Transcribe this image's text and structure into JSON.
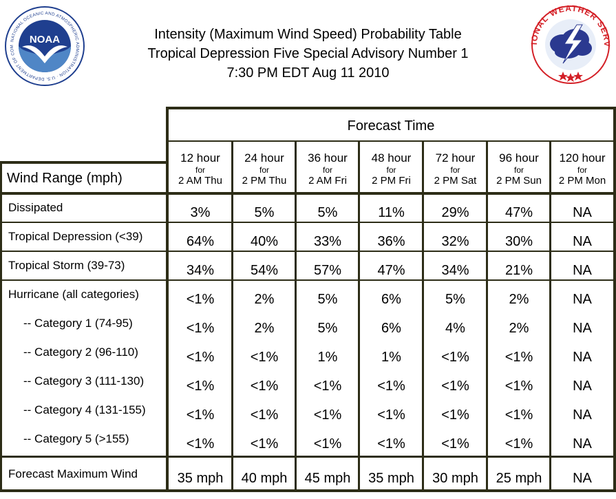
{
  "header": {
    "title_line1": "Intensity (Maximum Wind Speed) Probability Table",
    "title_line2": "Tropical Depression Five Special Advisory Number 1",
    "title_line3": "7:30 PM EDT Aug 11 2010"
  },
  "logos": {
    "noaa": {
      "text": "NOAA",
      "ring_text": "NATIONAL OCEANIC AND ATMOSPHERIC ADMINISTRATION · U.S. DEPARTMENT OF COMMERCE"
    },
    "nws": {
      "ring_text": "NATIONAL WEATHER SERVICE"
    }
  },
  "table": {
    "forecast_time_label": "Forecast Time",
    "row_header_label": "Wind Range (mph)",
    "columns": [
      {
        "hour": "12 hour",
        "for": "for",
        "time": "2 AM Thu"
      },
      {
        "hour": "24 hour",
        "for": "for",
        "time": "2 PM Thu"
      },
      {
        "hour": "36 hour",
        "for": "for",
        "time": "2 AM Fri"
      },
      {
        "hour": "48 hour",
        "for": "for",
        "time": "2 PM Fri"
      },
      {
        "hour": "72 hour",
        "for": "for",
        "time": "2 PM Sat"
      },
      {
        "hour": "96 hour",
        "for": "for",
        "time": "2 PM Sun"
      },
      {
        "hour": "120 hour",
        "for": "for",
        "time": "2 PM Mon"
      }
    ],
    "rows": [
      {
        "label": "Dissipated",
        "values": [
          "3%",
          "5%",
          "5%",
          "11%",
          "29%",
          "47%",
          "NA"
        ]
      },
      {
        "label": "Tropical Depression (<39)",
        "values": [
          "64%",
          "40%",
          "33%",
          "36%",
          "32%",
          "30%",
          "NA"
        ]
      },
      {
        "label": "Tropical Storm (39-73)",
        "values": [
          "34%",
          "54%",
          "57%",
          "47%",
          "34%",
          "21%",
          "NA"
        ]
      },
      {
        "label": "Hurricane (all categories)",
        "values": [
          "<1%",
          "2%",
          "5%",
          "6%",
          "5%",
          "2%",
          "NA"
        ]
      },
      {
        "label": "-- Category 1 (74-95)",
        "values": [
          "<1%",
          "2%",
          "5%",
          "6%",
          "4%",
          "2%",
          "NA"
        ]
      },
      {
        "label": "-- Category 2 (96-110)",
        "values": [
          "<1%",
          "<1%",
          "1%",
          "1%",
          "<1%",
          "<1%",
          "NA"
        ]
      },
      {
        "label": "-- Category 3 (111-130)",
        "values": [
          "<1%",
          "<1%",
          "<1%",
          "<1%",
          "<1%",
          "<1%",
          "NA"
        ]
      },
      {
        "label": "-- Category 4 (131-155)",
        "values": [
          "<1%",
          "<1%",
          "<1%",
          "<1%",
          "<1%",
          "<1%",
          "NA"
        ]
      },
      {
        "label": "-- Category 5 (>155)",
        "values": [
          "<1%",
          "<1%",
          "<1%",
          "<1%",
          "<1%",
          "<1%",
          "NA"
        ]
      },
      {
        "label": "Forecast Maximum Wind",
        "values": [
          "35 mph",
          "40 mph",
          "45 mph",
          "35 mph",
          "30 mph",
          "25 mph",
          "NA"
        ]
      }
    ]
  },
  "colors": {
    "grid_line": "#2d2d17",
    "noaa_blue": "#1f3f8f",
    "nws_red": "#d42027",
    "nws_navy": "#2b3990"
  }
}
